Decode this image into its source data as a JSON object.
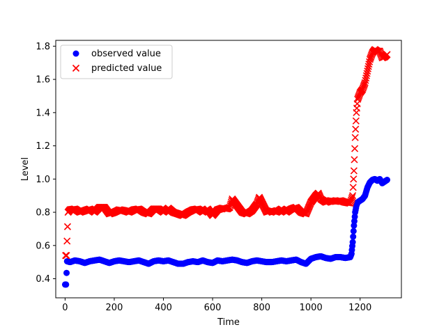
{
  "chart_data": {
    "type": "scatter",
    "title": "",
    "xlabel": "Time",
    "ylabel": "Level",
    "xlim": [
      -38,
      1368
    ],
    "ylim": [
      0.285,
      1.835
    ],
    "xticks": [
      0,
      200,
      400,
      600,
      800,
      1000,
      1200
    ],
    "yticks": [
      0.4,
      0.6,
      0.8,
      1.0,
      1.2,
      1.4,
      1.6,
      1.8
    ],
    "xtick_labels": [
      "0",
      "200",
      "400",
      "600",
      "800",
      "1000",
      "1200"
    ],
    "ytick_labels": [
      "0.4",
      "0.6",
      "0.8",
      "1.0",
      "1.2",
      "1.4",
      "1.6",
      "1.8"
    ],
    "grid": false,
    "legend_position": "top-left",
    "series": [
      {
        "name": "observed value",
        "marker": "circle",
        "color": "#0000ff",
        "x": [
          0,
          4,
          8,
          20,
          40,
          60,
          80,
          100,
          120,
          140,
          160,
          180,
          200,
          220,
          240,
          260,
          280,
          300,
          320,
          340,
          360,
          380,
          400,
          420,
          440,
          460,
          480,
          500,
          520,
          540,
          560,
          580,
          600,
          620,
          640,
          660,
          680,
          700,
          720,
          740,
          760,
          780,
          800,
          820,
          840,
          860,
          880,
          900,
          920,
          940,
          960,
          980,
          1000,
          1020,
          1040,
          1060,
          1080,
          1100,
          1120,
          1140,
          1160,
          1165,
          1170,
          1175,
          1180,
          1185,
          1190,
          1200,
          1210,
          1220,
          1230,
          1240,
          1250,
          1260,
          1270,
          1280,
          1290,
          1300,
          1310
        ],
        "y": [
          0.365,
          0.365,
          0.505,
          0.5,
          0.51,
          0.505,
          0.495,
          0.505,
          0.51,
          0.515,
          0.505,
          0.495,
          0.505,
          0.51,
          0.505,
          0.5,
          0.505,
          0.51,
          0.5,
          0.49,
          0.505,
          0.51,
          0.505,
          0.51,
          0.5,
          0.49,
          0.49,
          0.5,
          0.505,
          0.5,
          0.51,
          0.5,
          0.495,
          0.51,
          0.505,
          0.51,
          0.515,
          0.51,
          0.5,
          0.495,
          0.505,
          0.51,
          0.505,
          0.5,
          0.5,
          0.505,
          0.51,
          0.505,
          0.51,
          0.515,
          0.5,
          0.49,
          0.52,
          0.53,
          0.535,
          0.525,
          0.52,
          0.53,
          0.53,
          0.525,
          0.53,
          0.55,
          0.62,
          0.72,
          0.8,
          0.84,
          0.86,
          0.87,
          0.88,
          0.9,
          0.95,
          0.98,
          0.995,
          1.0,
          0.99,
          1.0,
          0.975,
          0.985,
          0.995
        ]
      },
      {
        "name": "predicted value",
        "marker": "x",
        "color": "#ff0000",
        "x": [
          2,
          6,
          12,
          20,
          40,
          60,
          80,
          100,
          120,
          140,
          160,
          180,
          200,
          220,
          240,
          260,
          280,
          300,
          320,
          340,
          360,
          380,
          400,
          420,
          440,
          460,
          480,
          500,
          520,
          540,
          560,
          580,
          600,
          620,
          640,
          660,
          670,
          680,
          690,
          700,
          720,
          740,
          760,
          780,
          790,
          800,
          820,
          840,
          860,
          880,
          900,
          920,
          940,
          960,
          980,
          1000,
          1010,
          1020,
          1030,
          1040,
          1060,
          1080,
          1100,
          1120,
          1140,
          1160,
          1170,
          1175,
          1180,
          1185,
          1190,
          1200,
          1210,
          1220,
          1230,
          1240,
          1250,
          1260,
          1270,
          1280,
          1290,
          1300,
          1310
        ],
        "y": [
          0.54,
          0.54,
          0.8,
          0.815,
          0.82,
          0.8,
          0.81,
          0.82,
          0.8,
          0.83,
          0.83,
          0.79,
          0.8,
          0.815,
          0.81,
          0.8,
          0.815,
          0.82,
          0.8,
          0.79,
          0.82,
          0.82,
          0.8,
          0.825,
          0.8,
          0.79,
          0.78,
          0.8,
          0.815,
          0.82,
          0.8,
          0.82,
          0.78,
          0.815,
          0.825,
          0.82,
          0.83,
          0.88,
          0.86,
          0.84,
          0.8,
          0.79,
          0.81,
          0.85,
          0.89,
          0.86,
          0.8,
          0.81,
          0.8,
          0.82,
          0.8,
          0.82,
          0.83,
          0.8,
          0.79,
          0.86,
          0.88,
          0.9,
          0.915,
          0.88,
          0.86,
          0.87,
          0.865,
          0.87,
          0.86,
          0.855,
          0.9,
          1.05,
          1.25,
          1.4,
          1.48,
          1.52,
          1.54,
          1.58,
          1.65,
          1.72,
          1.76,
          1.78,
          1.77,
          1.77,
          1.73,
          1.735,
          1.75
        ]
      }
    ]
  }
}
